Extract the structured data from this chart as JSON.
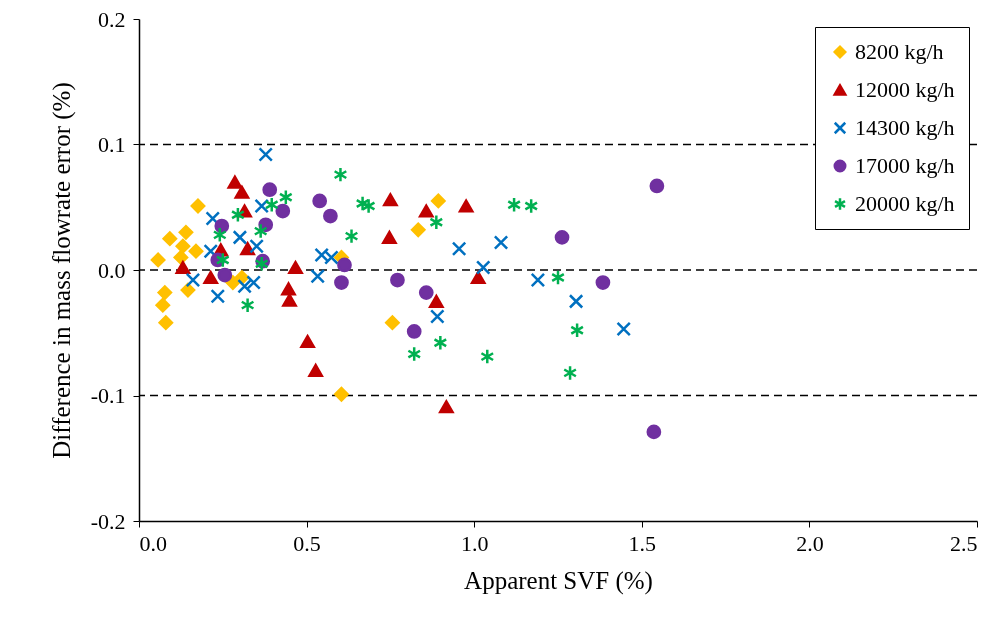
{
  "chart_data": {
    "type": "scatter",
    "xlabel": "Apparent SVF (%)",
    "ylabel": "Difference in mass flowrate error (%)",
    "xlim": [
      0,
      2.5
    ],
    "ylim": [
      -0.2,
      0.2
    ],
    "xticks": [
      {
        "value": 0,
        "label": "0.0"
      },
      0.5,
      {
        "value": 1,
        "label": "1.0"
      },
      1.5,
      {
        "value": 2,
        "label": "2.0"
      },
      2.5
    ],
    "yticks": [
      -0.2,
      -0.1,
      {
        "value": 0,
        "label": "0.0"
      },
      0.1,
      0.2
    ],
    "grid": false,
    "legend": "top right",
    "ref_lines": [
      {
        "axis": "y",
        "value": 0.1,
        "line_style": "dashed",
        "color": "#000000"
      },
      {
        "axis": "y",
        "value": 0,
        "line_style": "dashed",
        "color": "#000000"
      },
      {
        "axis": "y",
        "value": -0.1,
        "line_style": "dashed",
        "color": "#000000"
      }
    ],
    "series": [
      {
        "name": "8200 kg/h",
        "color": "#ffc000",
        "marker": "diamond",
        "x": [
          0.057,
          0.092,
          0.14,
          0.176,
          0.131,
          0.125,
          0.17,
          0.077,
          0.071,
          0.08,
          0.146,
          0.28,
          0.307,
          0.604,
          0.833,
          0.893,
          0.756,
          0.604
        ],
        "values": [
          0.008,
          0.025,
          0.03,
          0.051,
          0.019,
          0.01,
          0.015,
          -0.018,
          -0.028,
          -0.042,
          -0.016,
          -0.01,
          -0.006,
          0.01,
          0.032,
          0.055,
          -0.042,
          -0.099
        ]
      },
      {
        "name": "12000 kg/h",
        "color": "#c00000",
        "marker": "triangle",
        "x": [
          0.286,
          0.307,
          0.315,
          0.244,
          0.324,
          0.131,
          0.214,
          0.467,
          0.446,
          0.449,
          0.503,
          0.527,
          0.75,
          0.857,
          0.976,
          0.747,
          0.887,
          1.012,
          0.917
        ],
        "values": [
          0.07,
          0.062,
          0.047,
          0.016,
          0.017,
          0.002,
          -0.006,
          0.002,
          -0.015,
          -0.024,
          -0.057,
          -0.08,
          0.056,
          0.047,
          0.051,
          0.026,
          -0.025,
          -0.006,
          -0.109
        ]
      },
      {
        "name": "14300 kg/h",
        "color": "#0070c0",
        "marker": "cross",
        "x": [
          0.378,
          0.22,
          0.366,
          0.301,
          0.214,
          0.351,
          0.161,
          0.235,
          0.315,
          0.342,
          0.533,
          0.545,
          0.574,
          0.955,
          1.08,
          1.027,
          0.89,
          1.19,
          1.304,
          1.446
        ],
        "values": [
          0.092,
          0.041,
          0.051,
          0.026,
          0.015,
          0.019,
          -0.008,
          -0.021,
          -0.013,
          -0.01,
          -0.005,
          0.012,
          0.01,
          0.017,
          0.022,
          0.002,
          -0.037,
          -0.008,
          -0.025,
          -0.047
        ]
      },
      {
        "name": "17000 kg/h",
        "color": "#7030a0",
        "marker": "circle",
        "x": [
          0.39,
          0.429,
          0.247,
          0.378,
          0.539,
          0.571,
          0.369,
          0.235,
          0.256,
          0.613,
          0.604,
          0.771,
          0.857,
          0.821,
          1.545,
          1.262,
          1.384,
          1.536
        ],
        "values": [
          0.064,
          0.047,
          0.035,
          0.036,
          0.055,
          0.043,
          0.007,
          0.008,
          -0.004,
          0.004,
          -0.01,
          -0.008,
          -0.018,
          -0.049,
          0.067,
          0.026,
          -0.01,
          -0.129
        ]
      },
      {
        "name": "20000 kg/h",
        "color": "#00b050",
        "x": [
          0.438,
          0.396,
          0.295,
          0.241,
          0.363,
          0.25,
          0.366,
          0.324,
          0.601,
          0.667,
          0.685,
          0.634,
          0.887,
          1.119,
          1.17,
          0.821,
          0.899,
          1.039,
          1.25,
          1.307,
          1.286
        ],
        "values": [
          0.058,
          0.052,
          0.044,
          0.028,
          0.031,
          0.008,
          0.005,
          -0.028,
          0.076,
          0.053,
          0.051,
          0.027,
          0.038,
          0.052,
          0.051,
          -0.067,
          -0.058,
          -0.069,
          -0.006,
          -0.048,
          -0.082
        ]
      }
    ]
  }
}
